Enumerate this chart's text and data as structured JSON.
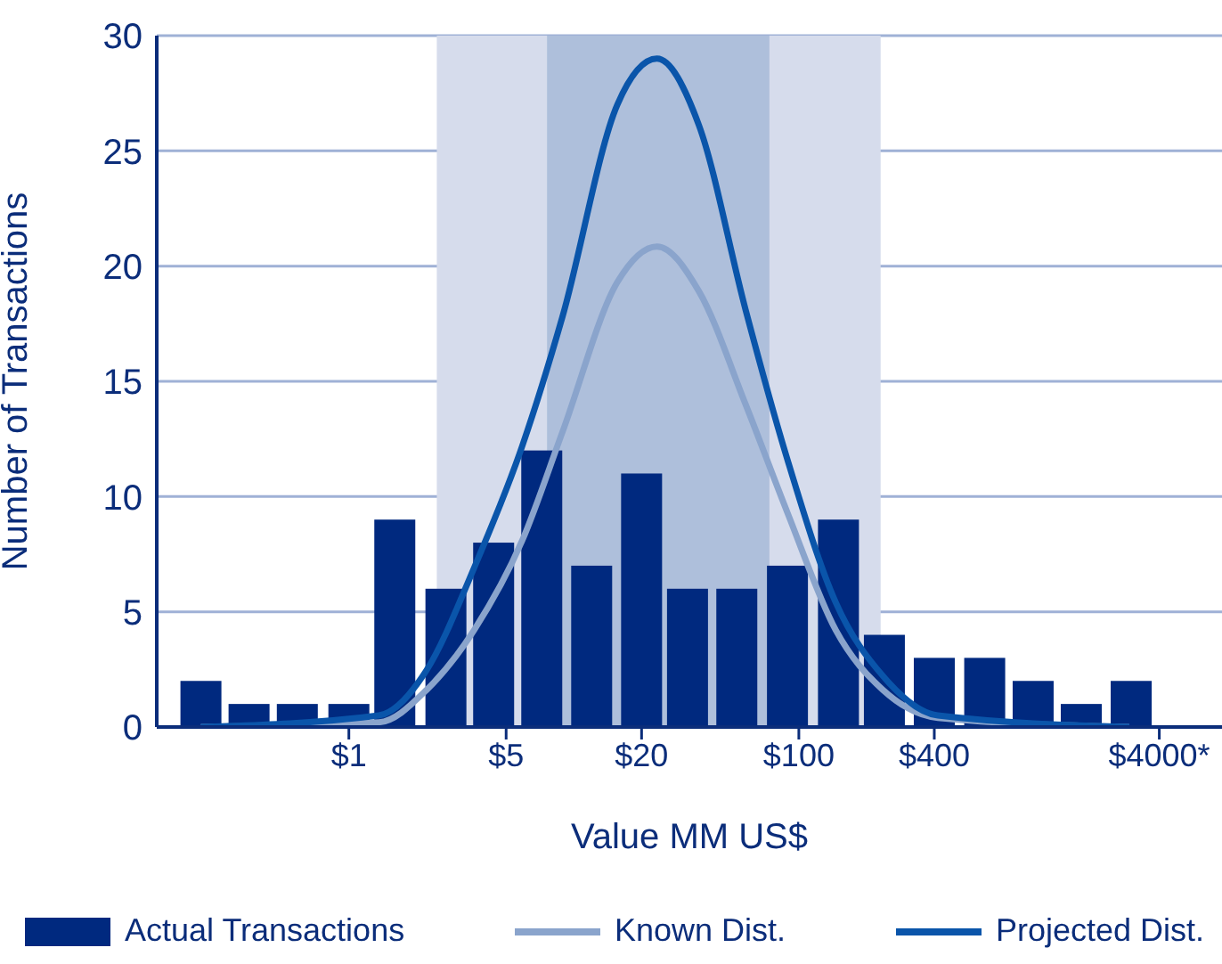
{
  "chart_data": {
    "type": "bar",
    "xlabel": "Value MM US$",
    "ylabel": "Number of Transactions",
    "log": "x",
    "xlim": [
      0.14,
      7600
    ],
    "xticks": [
      {
        "value": 1,
        "label": "$1"
      },
      {
        "value": 5,
        "label": "$5"
      },
      {
        "value": 20,
        "label": "$20"
      },
      {
        "value": 100,
        "label": "$100"
      },
      {
        "value": 400,
        "label": "$400"
      },
      {
        "value": 4000,
        "label": "$4000*"
      }
    ],
    "ylim": [
      0,
      30
    ],
    "yticks": [
      0,
      5,
      10,
      15,
      20,
      25,
      30
    ],
    "grid": "y",
    "legend": "bottom",
    "marker": "none",
    "bands": [
      {
        "axis": "x",
        "from": 2.46,
        "to": 231,
        "color": "#d6dcec"
      },
      {
        "axis": "x",
        "from": 7.6,
        "to": 74,
        "color": "#aebfdb"
      }
    ],
    "series": [
      {
        "name": "Actual Transactions",
        "color": "#00297f",
        "x": [
          0.22,
          0.36,
          0.59,
          1,
          1.6,
          2.7,
          4.4,
          7.2,
          12,
          20,
          32,
          53,
          89,
          150,
          240,
          400,
          670,
          1100,
          1800,
          3000
        ],
        "values": [
          2,
          1,
          1,
          1,
          9,
          6,
          8,
          12,
          7,
          11,
          6,
          6,
          7,
          9,
          4,
          3,
          3,
          2,
          1,
          2
        ]
      },
      {
        "name": "Known Dist.",
        "type": "line",
        "color": "#8aa4cc",
        "x": [
          0.22,
          1.36,
          2.21,
          3.6,
          5.9,
          8.9,
          15.6,
          23.4,
          36,
          58,
          89,
          146,
          237,
          415,
          2940
        ],
        "values": [
          0,
          0.2,
          1.6,
          4.2,
          8.1,
          12.8,
          19.3,
          20.85,
          18.9,
          14,
          9.3,
          4.2,
          1.6,
          0.4,
          0
        ]
      },
      {
        "name": "Projected Dist.",
        "type": "line",
        "color": "#0a55aa",
        "x": [
          0.22,
          1.36,
          2.21,
          3.6,
          5.9,
          8.9,
          15.6,
          23.4,
          36,
          58,
          89,
          146,
          237,
          415,
          2940
        ],
        "values": [
          0,
          0.5,
          2.45,
          6.9,
          12.2,
          17.8,
          27,
          29,
          26.1,
          18.1,
          11.6,
          5.4,
          2.2,
          0.5,
          0
        ]
      }
    ]
  }
}
